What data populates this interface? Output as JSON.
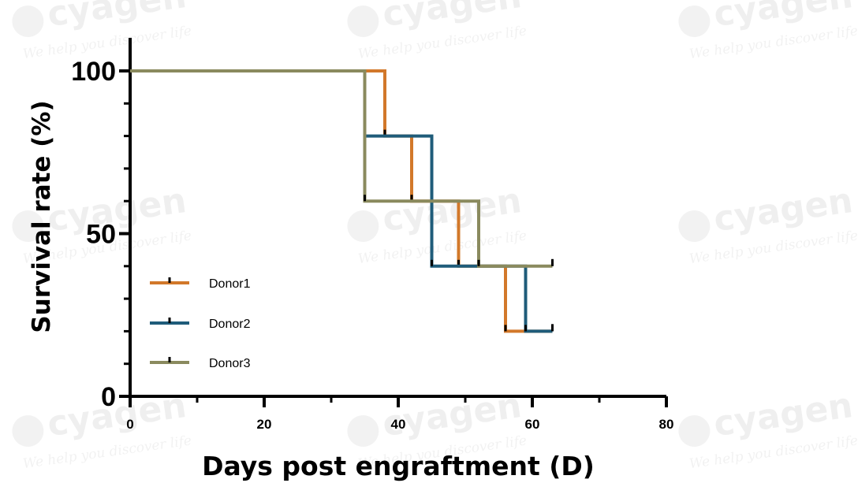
{
  "watermark": {
    "brand": "cyagen",
    "tagline": "We help you discover life"
  },
  "chart_data": {
    "type": "line",
    "step": true,
    "xlabel": "Days post engraftment (D)",
    "ylabel": "Survival rate (%)",
    "xlim": [
      0,
      80
    ],
    "ylim": [
      0,
      100
    ],
    "xticks": [
      0,
      20,
      40,
      60,
      80
    ],
    "yticks": [
      0,
      50,
      100
    ],
    "grid": false,
    "legend_position": "left",
    "series": [
      {
        "name": "Donor1",
        "color": "#d2782a",
        "x": [
          0,
          38,
          42,
          49,
          56,
          63
        ],
        "y": [
          100,
          80,
          60,
          40,
          20,
          20
        ],
        "censored": [
          [
            63,
            20
          ]
        ]
      },
      {
        "name": "Donor2",
        "color": "#1f5c7a",
        "x": [
          0,
          35,
          45,
          59,
          63
        ],
        "y": [
          100,
          80,
          40,
          20,
          20
        ],
        "censored": [
          [
            63,
            20
          ]
        ]
      },
      {
        "name": "Donor3",
        "color": "#8a8a5e",
        "x": [
          0,
          35,
          52,
          63
        ],
        "y": [
          100,
          60,
          40,
          40
        ],
        "censored": [
          [
            63,
            40
          ]
        ]
      }
    ]
  }
}
